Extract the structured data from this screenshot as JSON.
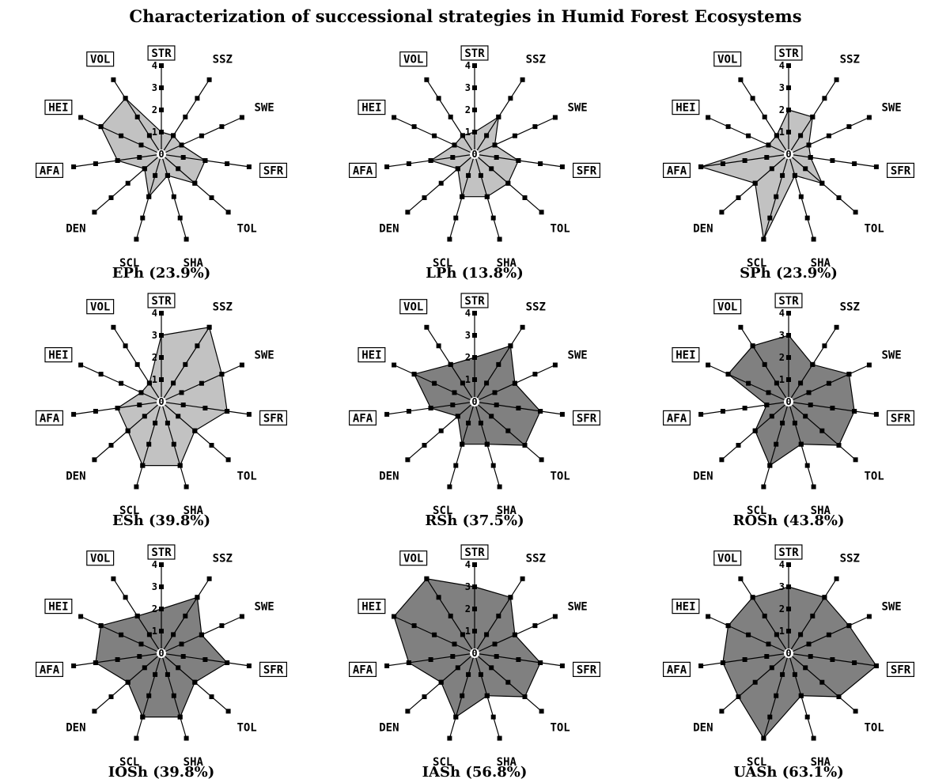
{
  "title": "Characterization of successional strategies in Humid Forest Ecosystems",
  "colors": {
    "light_fill": "#c2c2c2",
    "dark_fill": "#808080",
    "line": "#000000"
  },
  "chart_data": {
    "type": "radar",
    "title": "Characterization of successional strategies in Humid Forest Ecosystems",
    "axes": [
      "STR",
      "SSZ",
      "SWE",
      "SFR",
      "TOL",
      "SHA",
      "SCL",
      "DEN",
      "AFA",
      "HEI",
      "VOL"
    ],
    "boxed_axes": [
      "STR",
      "SFR",
      "AFA",
      "HEI",
      "VOL"
    ],
    "scale_ticks": [
      "0",
      "1",
      "2",
      "3",
      "4"
    ],
    "rlim": [
      0,
      4
    ],
    "grid": false,
    "charts": [
      {
        "name": "EPh",
        "percent": "(23.9%)",
        "fill": "light",
        "values": [
          1,
          1,
          1,
          2,
          2,
          1,
          2,
          1,
          2,
          3,
          3
        ]
      },
      {
        "name": "LPh",
        "percent": "(13.8%)",
        "fill": "light",
        "values": [
          1,
          2,
          1,
          2,
          2,
          2,
          2,
          1,
          2,
          1,
          1
        ]
      },
      {
        "name": "SPh",
        "percent": "(23.9%)",
        "fill": "light",
        "values": [
          2,
          2,
          1,
          1,
          2,
          1,
          4,
          2,
          4,
          1,
          1
        ]
      },
      {
        "name": "ESh",
        "percent": "(39.8%)",
        "fill": "light",
        "values": [
          3,
          4,
          3,
          3,
          2,
          3,
          3,
          2,
          2,
          1,
          1
        ]
      },
      {
        "name": "RSh",
        "percent": "(37.5%)",
        "fill": "dark",
        "values": [
          2,
          3,
          2,
          3,
          3,
          2,
          2,
          1,
          2,
          3,
          2
        ]
      },
      {
        "name": "ROSh",
        "percent": "(43.8%)",
        "fill": "dark",
        "values": [
          3,
          2,
          3,
          3,
          3,
          2,
          3,
          2,
          1,
          3,
          3
        ]
      },
      {
        "name": "IOSh",
        "percent": "(39.8%)",
        "fill": "dark",
        "values": [
          2,
          3,
          2,
          3,
          2,
          3,
          3,
          2,
          3,
          3,
          2
        ]
      },
      {
        "name": "IASh",
        "percent": "(56.8%)",
        "fill": "dark",
        "values": [
          3,
          3,
          2,
          3,
          3,
          2,
          3,
          2,
          3,
          4,
          4
        ]
      },
      {
        "name": "UASh",
        "percent": "(63.1%)",
        "fill": "dark",
        "values": [
          3,
          3,
          3,
          4,
          3,
          2,
          4,
          3,
          3,
          3,
          3
        ]
      }
    ]
  }
}
